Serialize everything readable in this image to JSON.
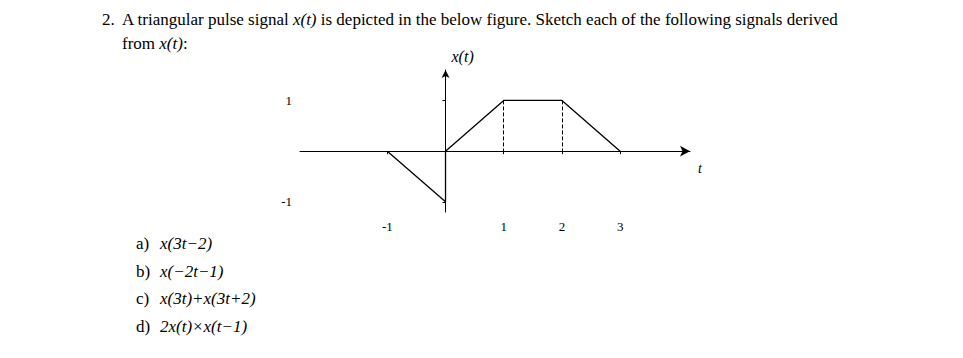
{
  "question": {
    "number": "2.",
    "text_lines": [
      "A triangular pulse signal x(t) is depicted in the below figure. Sketch each of the following signals derived",
      "from x(t):"
    ],
    "parts": [
      {
        "label": "a)",
        "expr": "x(3t−2)"
      },
      {
        "label": "b)",
        "expr": "x(−2t−1)"
      },
      {
        "label": "c)",
        "expr": "x(3t)+x(3t+2)"
      },
      {
        "label": "d)",
        "expr": "2x(t)×x(t−1)"
      }
    ]
  },
  "chart_data": {
    "type": "line",
    "xlabel": "t",
    "ylabel": "x(t)",
    "x": [
      -1,
      0,
      0,
      1,
      2,
      3
    ],
    "values": [
      0,
      -1,
      0,
      1,
      1,
      0
    ],
    "color": "#000000",
    "line_style": "solid",
    "xlim": [
      -2.5,
      4.2
    ],
    "ylim": [
      -1.2,
      1.6
    ],
    "xticks": [
      -1,
      1,
      2,
      3
    ],
    "yticks": [
      -1,
      1
    ],
    "grid": false
  }
}
